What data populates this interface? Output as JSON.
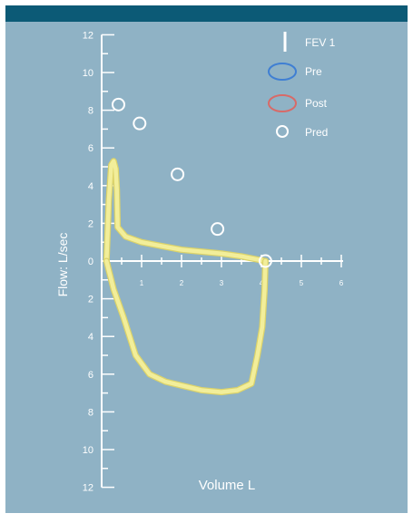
{
  "colors": {
    "background": "#8fb2c5",
    "top_band": "#0c5a76",
    "frame": "#ffffff",
    "axis": "#ffffff",
    "loop": "#f2ee9a",
    "loop_edge": "#dcd36a",
    "pre": "#3f7fd3",
    "post": "#d86a68",
    "pred": "#ffffff"
  },
  "chart_data": {
    "type": "scatter",
    "xlabel": "Volume L",
    "ylabel": "Flow: L/sec",
    "x_ticks": [
      1,
      2,
      3,
      4,
      5,
      6
    ],
    "y_ticks_upper": [
      12,
      10,
      8,
      6,
      4,
      2,
      0
    ],
    "y_ticks_lower": [
      2,
      4,
      6,
      8,
      10,
      12
    ],
    "xlim": [
      0,
      6
    ],
    "ylim": [
      -12,
      12
    ],
    "legend": {
      "position": "top-right",
      "items": [
        {
          "label": "FEV 1",
          "icon": "vertical-bar-icon"
        },
        {
          "label": "Pre",
          "icon": "blue-ellipse-icon"
        },
        {
          "label": "Post",
          "icon": "red-ellipse-icon"
        },
        {
          "label": "Pred",
          "icon": "circle-icon"
        }
      ]
    },
    "pred_points": [
      {
        "x": 0.42,
        "y": 8.3
      },
      {
        "x": 0.95,
        "y": 7.3
      },
      {
        "x": 1.9,
        "y": 4.6
      },
      {
        "x": 2.9,
        "y": 1.7
      },
      {
        "x": 4.1,
        "y": 0.0
      }
    ],
    "loop_expiratory": [
      [
        0.12,
        0.0
      ],
      [
        0.18,
        3.2
      ],
      [
        0.24,
        5.1
      ],
      [
        0.3,
        5.3
      ],
      [
        0.35,
        4.9
      ],
      [
        0.38,
        3.8
      ],
      [
        0.4,
        1.8
      ],
      [
        0.6,
        1.3
      ],
      [
        1.0,
        1.0
      ],
      [
        1.5,
        0.8
      ],
      [
        2.0,
        0.6
      ],
      [
        2.5,
        0.5
      ],
      [
        3.0,
        0.4
      ],
      [
        3.5,
        0.25
      ],
      [
        4.1,
        0.0
      ]
    ],
    "loop_inspiratory": [
      [
        4.1,
        0.0
      ],
      [
        4.08,
        -1.5
      ],
      [
        4.02,
        -3.5
      ],
      [
        3.9,
        -5.0
      ],
      [
        3.75,
        -6.5
      ],
      [
        3.4,
        -6.85
      ],
      [
        3.0,
        -6.95
      ],
      [
        2.5,
        -6.85
      ],
      [
        2.0,
        -6.6
      ],
      [
        1.6,
        -6.4
      ],
      [
        1.2,
        -6.0
      ],
      [
        0.85,
        -5.0
      ],
      [
        0.55,
        -3.0
      ],
      [
        0.3,
        -1.5
      ],
      [
        0.12,
        0.0
      ]
    ]
  }
}
